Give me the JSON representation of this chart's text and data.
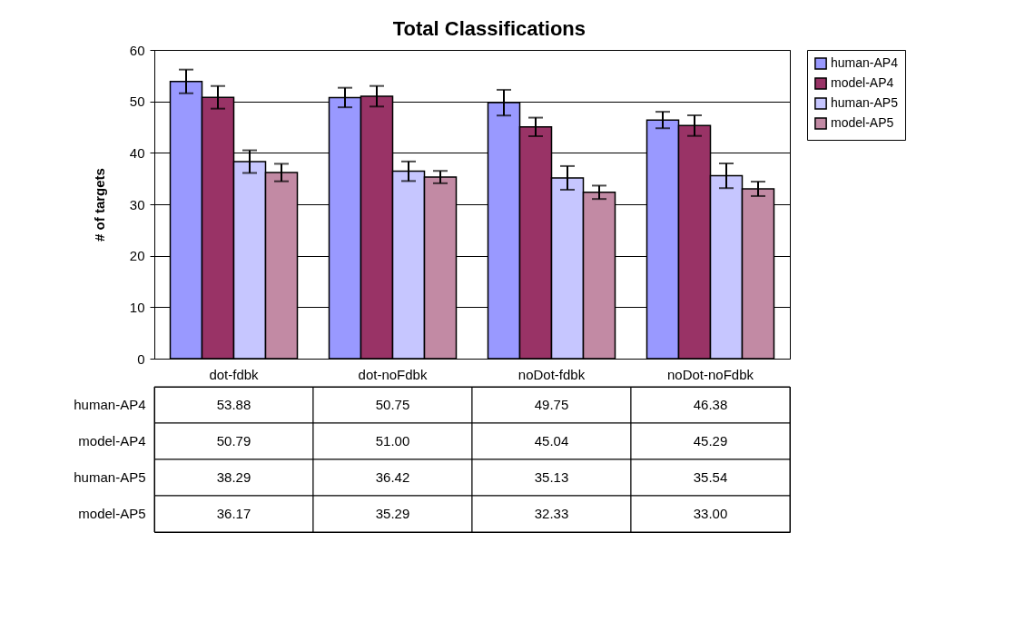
{
  "chart_data": {
    "type": "bar",
    "title": "Total   Classifications",
    "ylabel": "#   of   targets",
    "categories": [
      "dot-fdbk",
      "dot-noFdbk",
      "noDot-fdbk",
      "noDot-noFdbk"
    ],
    "series": [
      {
        "name": "human-AP4",
        "color": "#9999ff",
        "values": [
          53.88,
          50.75,
          49.75,
          46.38
        ],
        "errors": [
          2.3,
          1.9,
          2.5,
          1.6
        ],
        "value_labels": [
          "53.88",
          "50.75",
          "49.75",
          "46.38"
        ]
      },
      {
        "name": "model-AP4",
        "color": "#993366",
        "values": [
          50.79,
          51.0,
          45.04,
          45.29
        ],
        "errors": [
          2.2,
          2.0,
          1.8,
          2.0
        ],
        "value_labels": [
          "50.79",
          "51.00",
          "45.04",
          "45.29"
        ]
      },
      {
        "name": "human-AP5",
        "color": "#c6c6ff",
        "values": [
          38.29,
          36.42,
          35.13,
          35.54
        ],
        "errors": [
          2.2,
          1.9,
          2.3,
          2.4
        ],
        "value_labels": [
          "38.29",
          "36.42",
          "35.13",
          "35.54"
        ]
      },
      {
        "name": "model-AP5",
        "color": "#c28aa4",
        "values": [
          36.17,
          35.29,
          32.33,
          33.0
        ],
        "errors": [
          1.7,
          1.2,
          1.3,
          1.4
        ],
        "value_labels": [
          "36.17",
          "35.29",
          "32.33",
          "33.00"
        ]
      }
    ],
    "ylim": [
      0,
      60
    ],
    "yticks": [
      0,
      10,
      20,
      30,
      40,
      50,
      60
    ],
    "grid": "y",
    "legend": "right"
  }
}
